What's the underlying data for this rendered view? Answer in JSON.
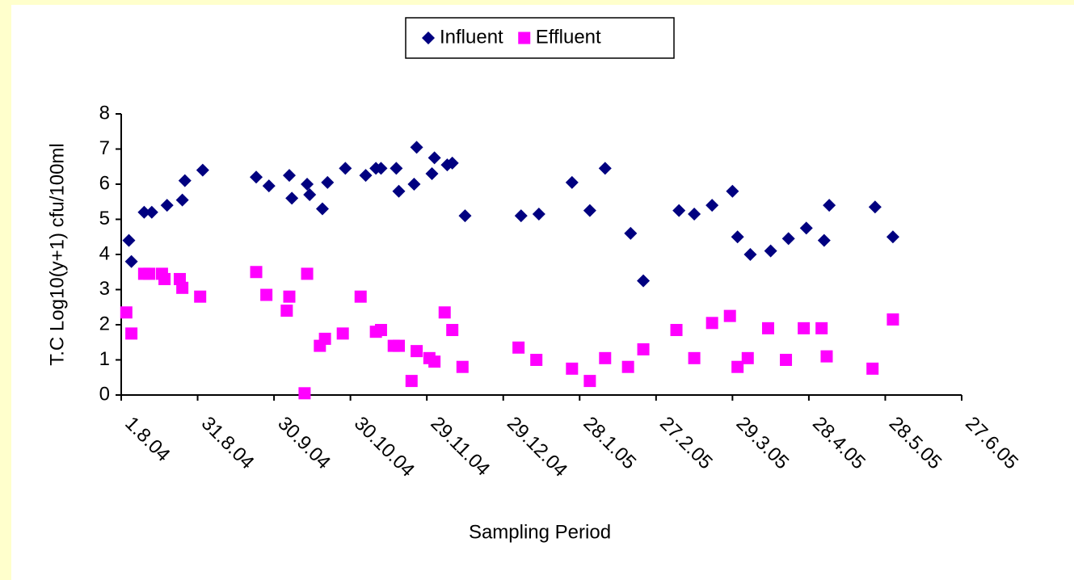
{
  "chart_data": {
    "type": "scatter",
    "x_label": "Sampling Period",
    "y_label": "T.C Log10(y+1) cfu/100ml",
    "xlim": [
      "1.8.04",
      "27.6.05"
    ],
    "xticks": [
      "1.8.04",
      "31.8.04",
      "30.9.04",
      "30.10.04",
      "29.11.04",
      "29.12.04",
      "28.1.05",
      "27.2.05",
      "29.3.05",
      "28.4.05",
      "28.5.05",
      "27.6.05"
    ],
    "ylim": [
      0,
      8
    ],
    "yticks": [
      0,
      1,
      2,
      3,
      4,
      5,
      6,
      7,
      8
    ],
    "legend": "top",
    "series": [
      {
        "name": "Influent",
        "color": "#000080",
        "marker": "diamond",
        "x": [
          "4.8.04",
          "5.8.04",
          "10.8.04",
          "13.8.04",
          "19.8.04",
          "25.8.04",
          "26.8.04",
          "2.9.04",
          "23.9.04",
          "28.9.04",
          "6.10.04",
          "7.10.04",
          "13.10.04",
          "14.10.04",
          "19.10.04",
          "21.10.04",
          "28.10.04",
          "5.11.04",
          "9.11.04",
          "11.11.04",
          "17.11.04",
          "18.11.04",
          "24.11.04",
          "25.11.04",
          "1.12.04",
          "2.12.04",
          "7.12.04",
          "9.12.04",
          "14.12.04",
          "5.1.05",
          "12.1.05",
          "25.1.05",
          "1.2.05",
          "7.2.05",
          "17.2.05",
          "22.2.05",
          "8.3.05",
          "14.3.05",
          "21.3.05",
          "29.3.05",
          "31.3.05",
          "5.4.05",
          "13.4.05",
          "20.4.05",
          "27.4.05",
          "4.5.05",
          "6.5.05",
          "24.5.05",
          "31.5.05"
        ],
        "values": [
          4.4,
          3.8,
          5.2,
          5.2,
          5.4,
          5.55,
          6.1,
          6.4,
          6.2,
          5.95,
          6.25,
          5.6,
          6.0,
          5.7,
          5.3,
          6.05,
          6.45,
          6.25,
          6.45,
          6.45,
          6.45,
          5.8,
          6.0,
          7.05,
          6.3,
          6.75,
          6.55,
          6.6,
          5.1,
          5.1,
          5.15,
          6.05,
          5.25,
          6.45,
          4.6,
          3.25,
          5.25,
          5.15,
          5.4,
          5.8,
          4.5,
          4.0,
          4.1,
          4.45,
          4.75,
          4.4,
          5.4,
          5.35,
          4.5
        ]
      },
      {
        "name": "Effluent",
        "color": "#ff00ff",
        "marker": "square",
        "x": [
          "3.8.04",
          "5.8.04",
          "10.8.04",
          "12.8.04",
          "17.8.04",
          "18.8.04",
          "24.8.04",
          "25.8.04",
          "1.9.04",
          "23.9.04",
          "27.9.04",
          "5.10.04",
          "6.10.04",
          "12.10.04",
          "13.10.04",
          "18.10.04",
          "20.10.04",
          "27.10.04",
          "3.11.04",
          "9.11.04",
          "11.11.04",
          "16.11.04",
          "18.11.04",
          "23.11.04",
          "25.11.04",
          "30.11.04",
          "2.12.04",
          "6.12.04",
          "9.12.04",
          "13.12.04",
          "4.1.05",
          "11.1.05",
          "25.1.05",
          "1.2.05",
          "7.2.05",
          "16.2.05",
          "22.2.05",
          "7.3.05",
          "14.3.05",
          "21.3.05",
          "28.3.05",
          "31.3.05",
          "4.4.05",
          "12.4.05",
          "19.4.05",
          "26.4.05",
          "3.5.05",
          "5.5.05",
          "23.5.05",
          "31.5.05"
        ],
        "values": [
          2.35,
          1.75,
          3.45,
          3.45,
          3.45,
          3.3,
          3.3,
          3.05,
          2.8,
          3.5,
          2.85,
          2.4,
          2.8,
          0.05,
          3.45,
          1.4,
          1.6,
          1.75,
          2.8,
          1.8,
          1.85,
          1.4,
          1.4,
          0.4,
          1.25,
          1.05,
          0.95,
          2.35,
          1.85,
          0.8,
          1.35,
          1.0,
          0.75,
          0.4,
          1.05,
          0.8,
          1.3,
          1.85,
          1.05,
          2.05,
          2.25,
          0.8,
          1.05,
          1.9,
          1.0,
          1.9,
          1.9,
          1.1,
          0.75,
          2.15
        ]
      }
    ]
  }
}
